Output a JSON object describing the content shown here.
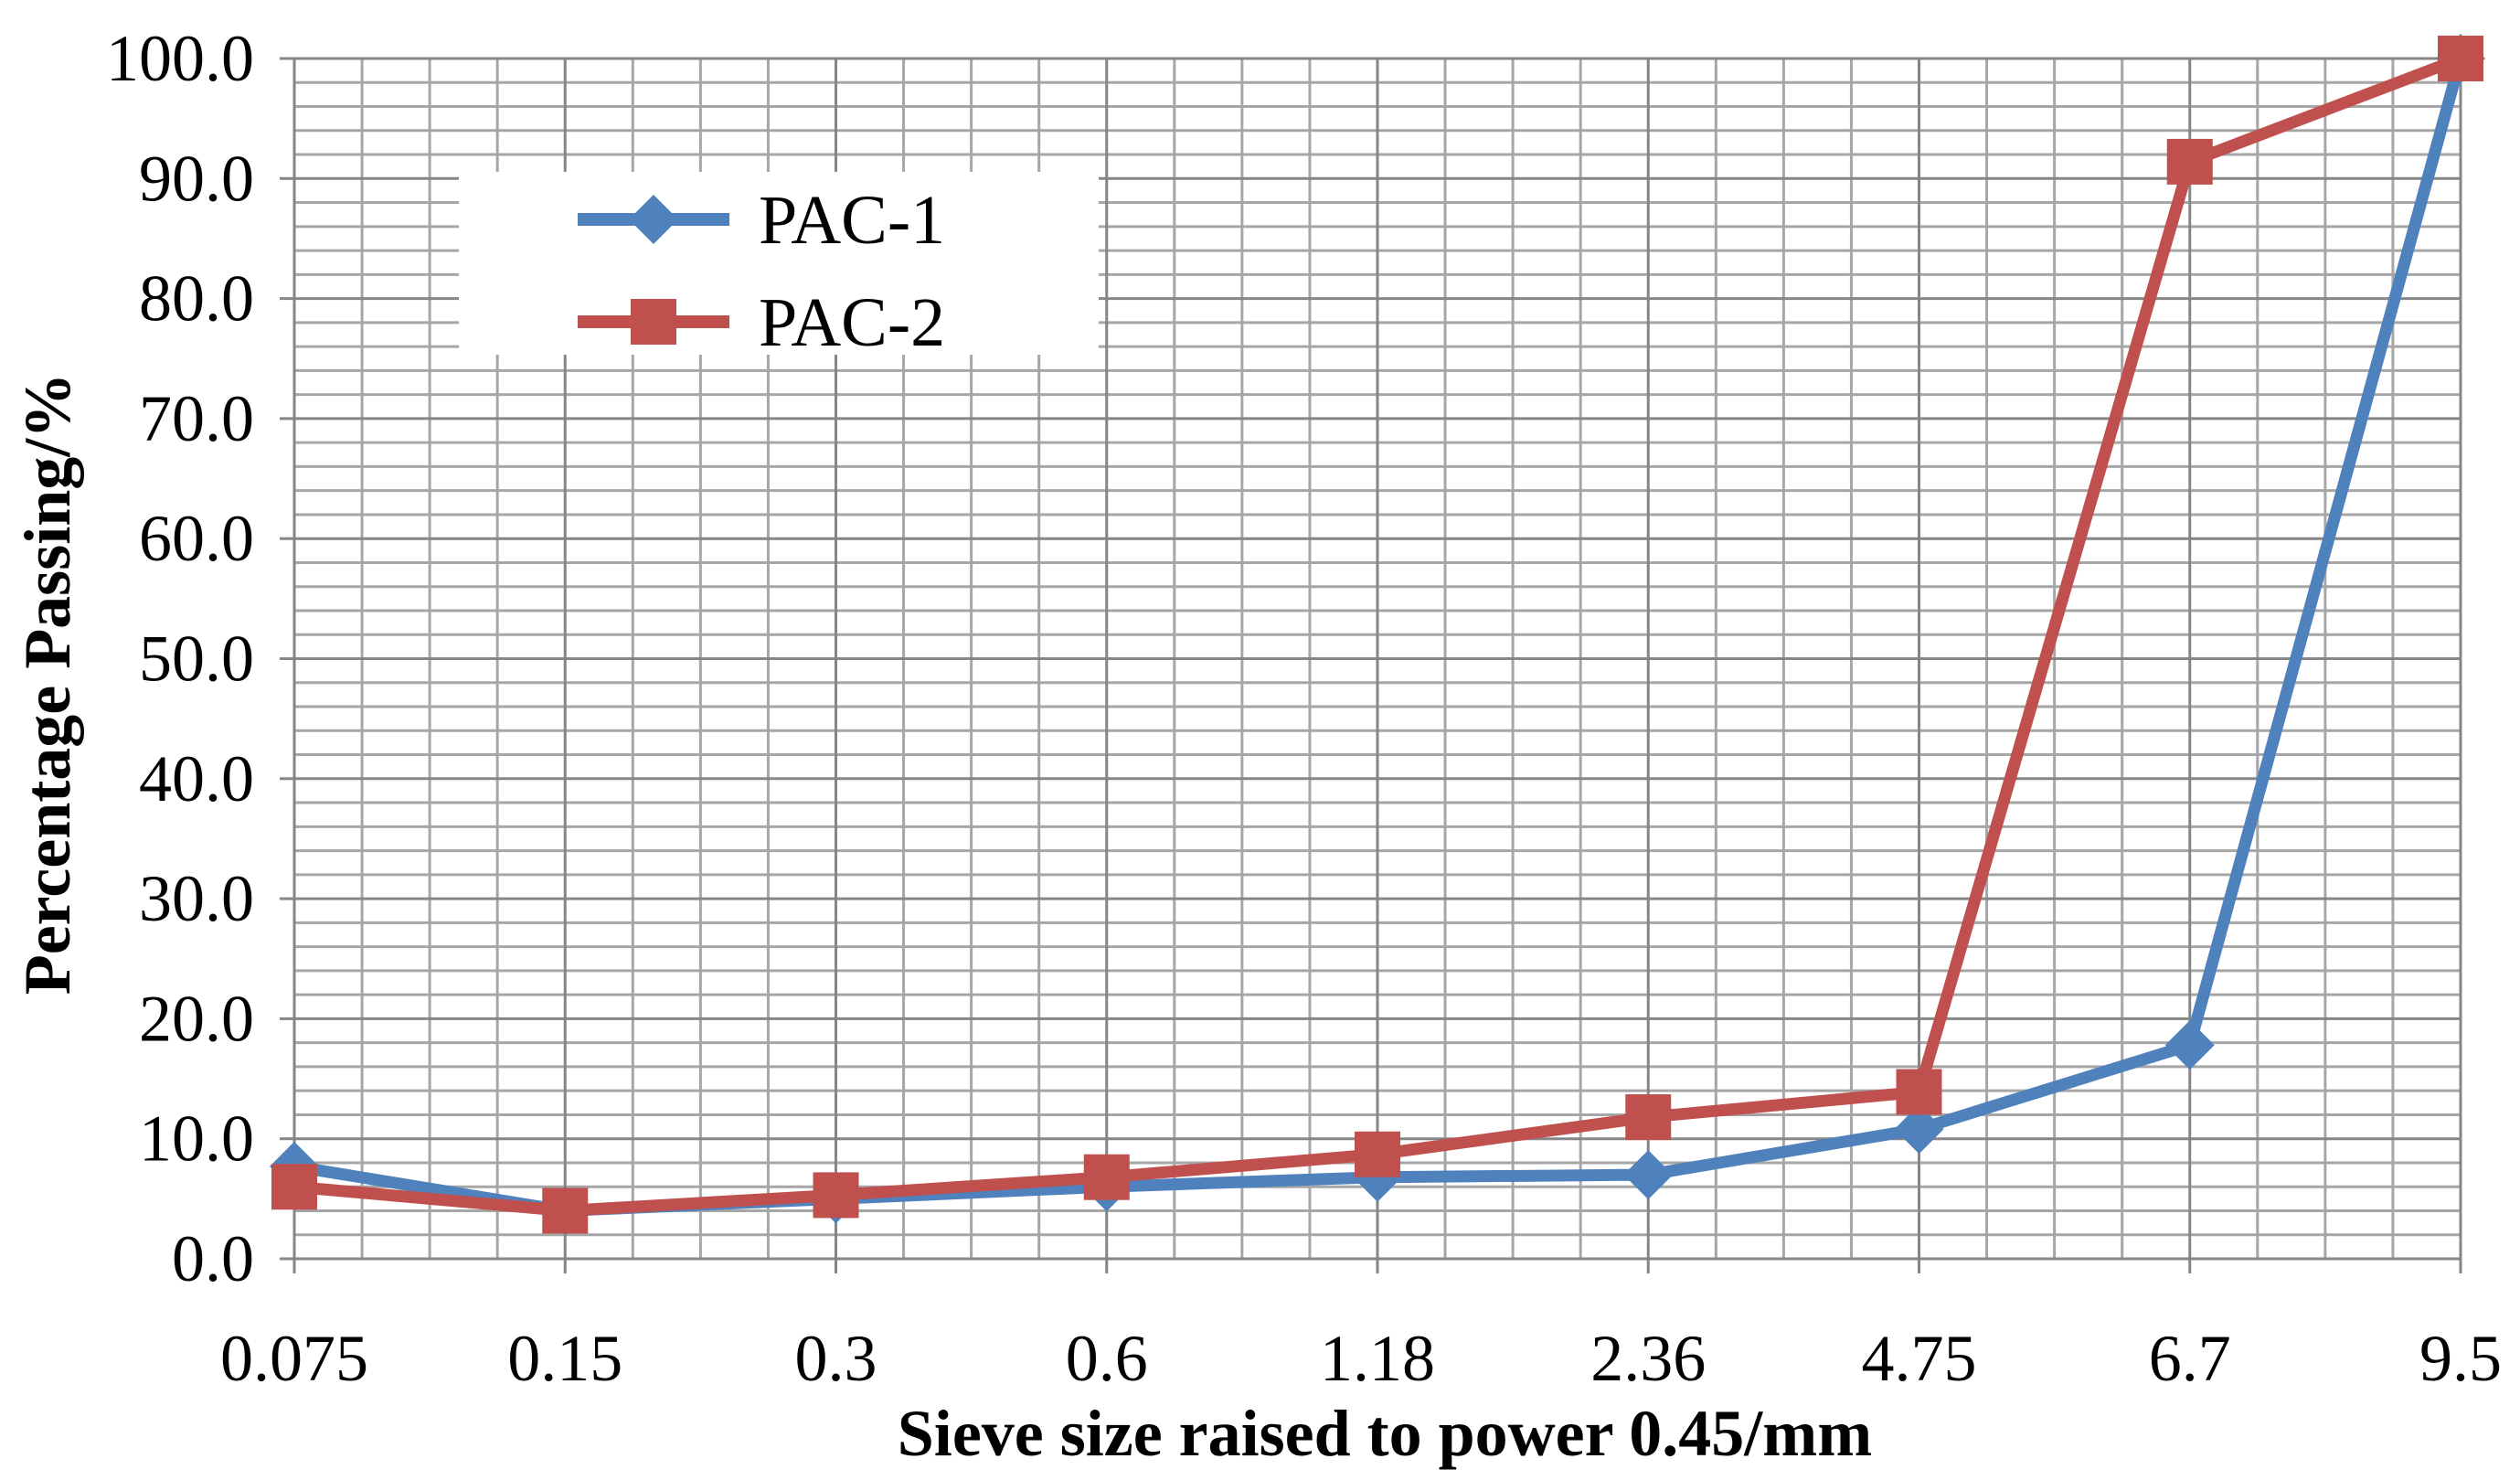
{
  "chart_data": {
    "type": "line",
    "title": "",
    "categories": [
      "0.075",
      "0.15",
      "0.3",
      "0.6",
      "1.18",
      "2.36",
      "4.75",
      "6.7",
      "9.5"
    ],
    "series": [
      {
        "name": "PAC-1",
        "color": "#4f81bd",
        "marker": "diamond",
        "values": [
          7.7,
          4.0,
          5.0,
          6.0,
          6.8,
          7.0,
          10.8,
          17.8,
          100.0
        ]
      },
      {
        "name": "PAC-2",
        "color": "#c0504d",
        "marker": "square",
        "values": [
          6.0,
          4.0,
          5.3,
          6.8,
          8.7,
          11.8,
          13.9,
          91.4,
          100.0
        ]
      }
    ],
    "ylim": [
      0,
      100
    ],
    "ytick_step": 10,
    "ytick_labels": [
      "0.0",
      "10.0",
      "20.0",
      "30.0",
      "40.0",
      "50.0",
      "60.0",
      "70.0",
      "80.0",
      "90.0",
      "100.0"
    ],
    "ylabel": "Percentage Passing/%",
    "xlabel": "Sieve  size raised to power 0.45/mm",
    "grid": true,
    "legend_position": "top-left"
  }
}
